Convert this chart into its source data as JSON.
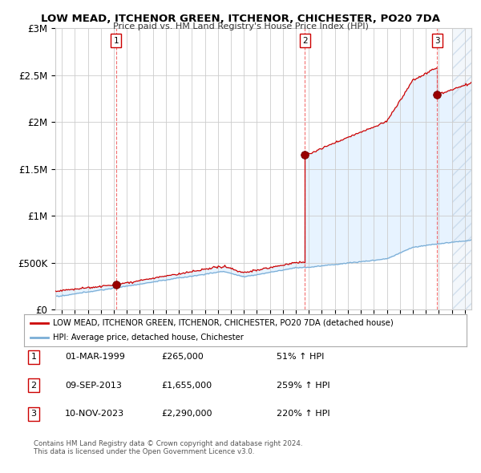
{
  "title": "LOW MEAD, ITCHENOR GREEN, ITCHENOR, CHICHESTER, PO20 7DA",
  "subtitle": "Price paid vs. HM Land Registry's House Price Index (HPI)",
  "ylabel_ticks": [
    "£0",
    "£500K",
    "£1M",
    "£1.5M",
    "£2M",
    "£2.5M",
    "£3M"
  ],
  "ylabel_values": [
    0,
    500000,
    1000000,
    1500000,
    2000000,
    2500000,
    3000000
  ],
  "ylim": [
    0,
    3000000
  ],
  "xlim_start": 1994.5,
  "xlim_end": 2026.5,
  "legend_line1": "LOW MEAD, ITCHENOR GREEN, ITCHENOR, CHICHESTER, PO20 7DA (detached house)",
  "legend_line2": "HPI: Average price, detached house, Chichester",
  "sales": [
    {
      "label": "1",
      "date": 1999.17,
      "price": 265000,
      "text": "01-MAR-1999",
      "price_text": "£265,000",
      "pct": "51% ↑ HPI"
    },
    {
      "label": "2",
      "date": 2013.69,
      "price": 1655000,
      "text": "09-SEP-2013",
      "price_text": "£1,655,000",
      "pct": "259% ↑ HPI"
    },
    {
      "label": "3",
      "date": 2023.86,
      "price": 2290000,
      "text": "10-NOV-2023",
      "price_text": "£2,290,000",
      "pct": "220% ↑ HPI"
    }
  ],
  "red_line_color": "#cc0000",
  "blue_line_color": "#7aaed6",
  "fill_color": "#ddeeff",
  "dot_color": "#990000",
  "vline_color": "#ee3333",
  "grid_color": "#cccccc",
  "bg_color": "#ffffff",
  "hatch_color": "#ccddee",
  "footnote1": "Contains HM Land Registry data © Crown copyright and database right 2024.",
  "footnote2": "This data is licensed under the Open Government Licence v3.0."
}
